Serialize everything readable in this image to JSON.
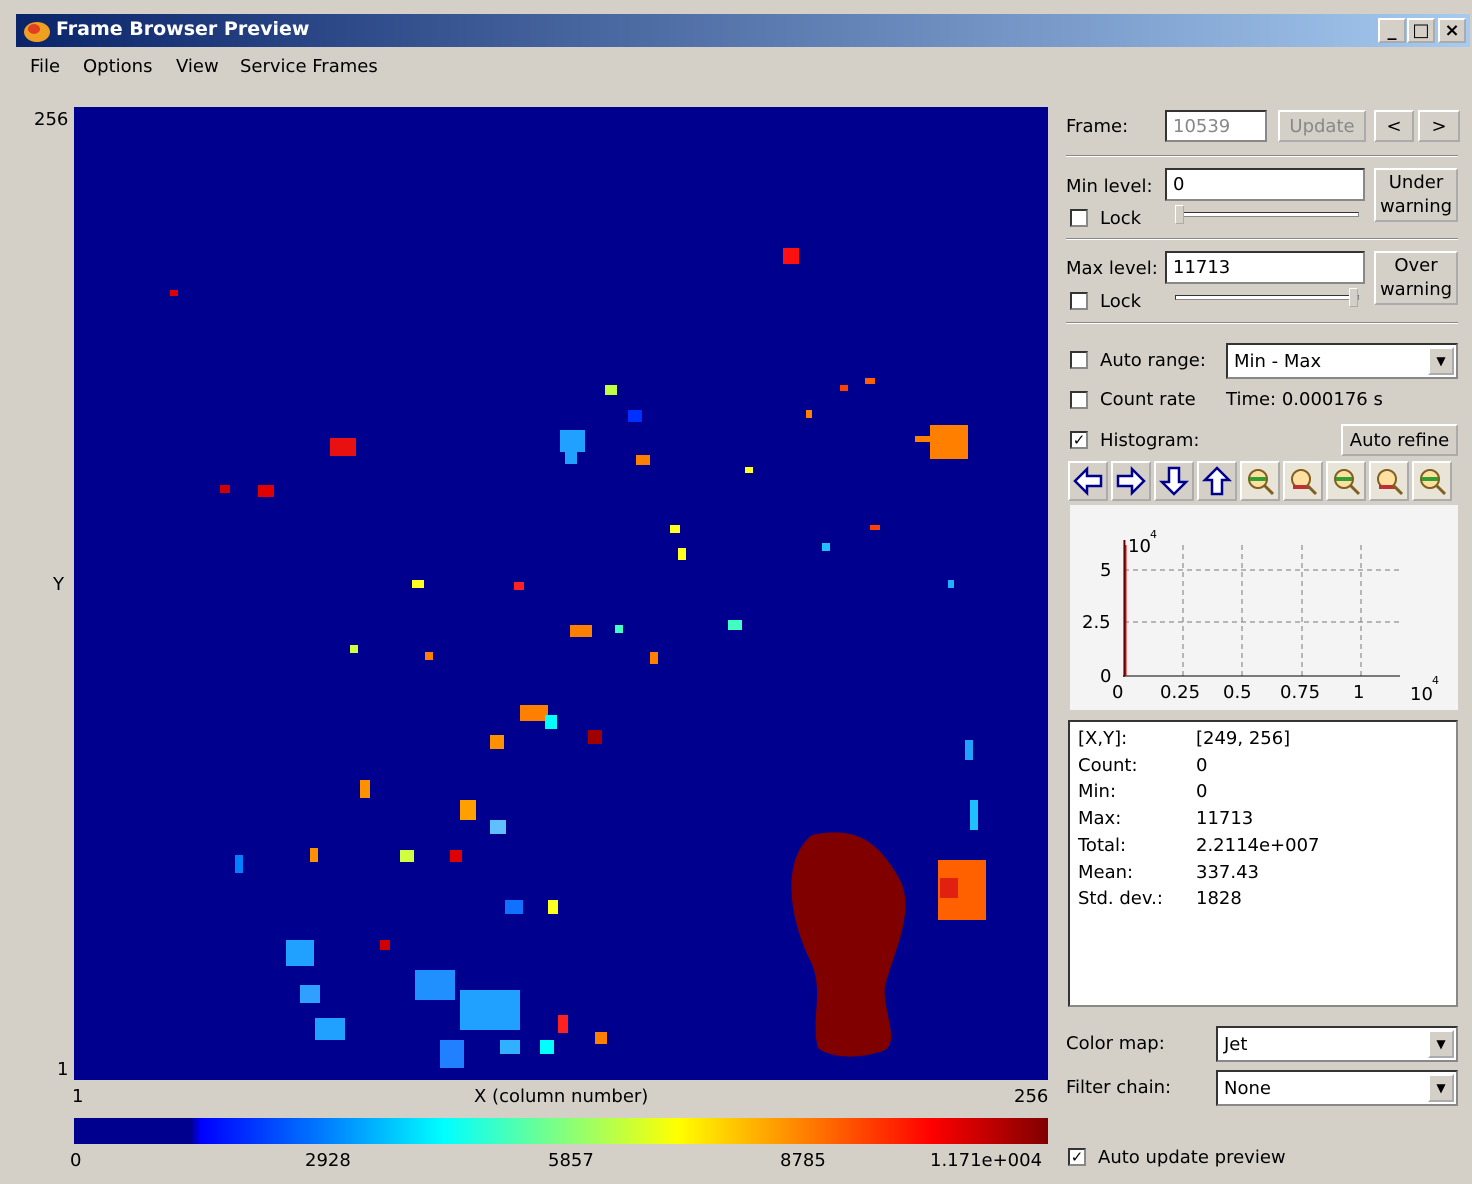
{
  "window": {
    "title": "Frame Browser Preview"
  },
  "menu": [
    "File",
    "Options",
    "View",
    "Service Frames"
  ],
  "image": {
    "y_max": "256",
    "y_label": "Y",
    "y_min": "1",
    "x_min": "1",
    "x_label": "X (column number)",
    "x_max": "256"
  },
  "colorbar": {
    "labels": [
      "0",
      "2928",
      "5857",
      "8785",
      "1.171e+004"
    ]
  },
  "frame": {
    "label": "Frame:",
    "value": "10539",
    "update": "Update",
    "prev": "<",
    "next": ">"
  },
  "min_level": {
    "label": "Min level:",
    "value": "0",
    "lock": "Lock",
    "warning": "Under warning"
  },
  "max_level": {
    "label": "Max level:",
    "value": "11713",
    "lock": "Lock",
    "warning": "Over warning"
  },
  "auto_range": {
    "label": "Auto range:",
    "value": "Min - Max"
  },
  "count_rate": {
    "label": "Count rate",
    "time": "Time: 0.000176 s"
  },
  "histogram": {
    "label": "Histogram:",
    "auto_refine": "Auto refine",
    "y_exponent": "10",
    "y_exponent_power": "4",
    "y_ticks": [
      "5",
      "2.5",
      "0"
    ],
    "x_ticks": [
      "0",
      "0.25",
      "0.5",
      "0.75",
      "1"
    ],
    "x_exponent": "10",
    "x_exponent_power": "4"
  },
  "stats": [
    [
      "[X,Y]:",
      "[249, 256]"
    ],
    [
      "Count:",
      "0"
    ],
    [
      "Min:",
      "0"
    ],
    [
      "Max:",
      "11713"
    ],
    [
      "Total:",
      "2.2114e+007"
    ],
    [
      "Mean:",
      "337.43"
    ],
    [
      "Std. dev.:",
      "1828"
    ]
  ],
  "color_map": {
    "label": "Color map:",
    "value": "Jet"
  },
  "filter_chain": {
    "label": "Filter chain:",
    "value": "None"
  },
  "auto_update": {
    "label": "Auto update preview"
  }
}
